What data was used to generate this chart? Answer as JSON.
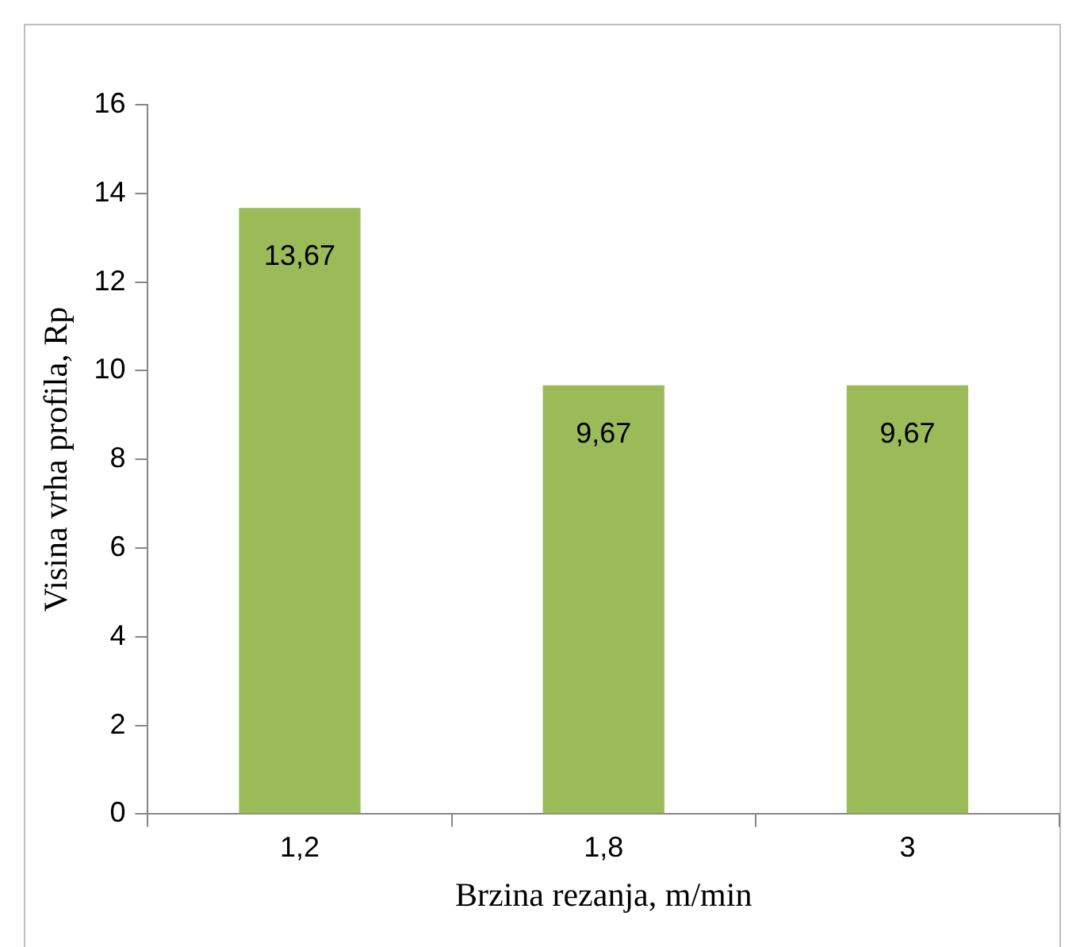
{
  "chart_data": {
    "type": "bar",
    "xlabel": "Brzina rezanja, m/min",
    "ylabel": "Visina vrha profila, Rp",
    "categories": [
      "1,2",
      "1,8",
      "3"
    ],
    "values": [
      13.67,
      9.67,
      9.67
    ],
    "color": "#9bbb59",
    "value_labels": [
      "13,67",
      "9,67",
      "9,67"
    ],
    "ylim": [
      0,
      16
    ],
    "yticks": [
      0,
      2,
      4,
      6,
      8,
      10,
      12,
      14,
      16
    ]
  }
}
